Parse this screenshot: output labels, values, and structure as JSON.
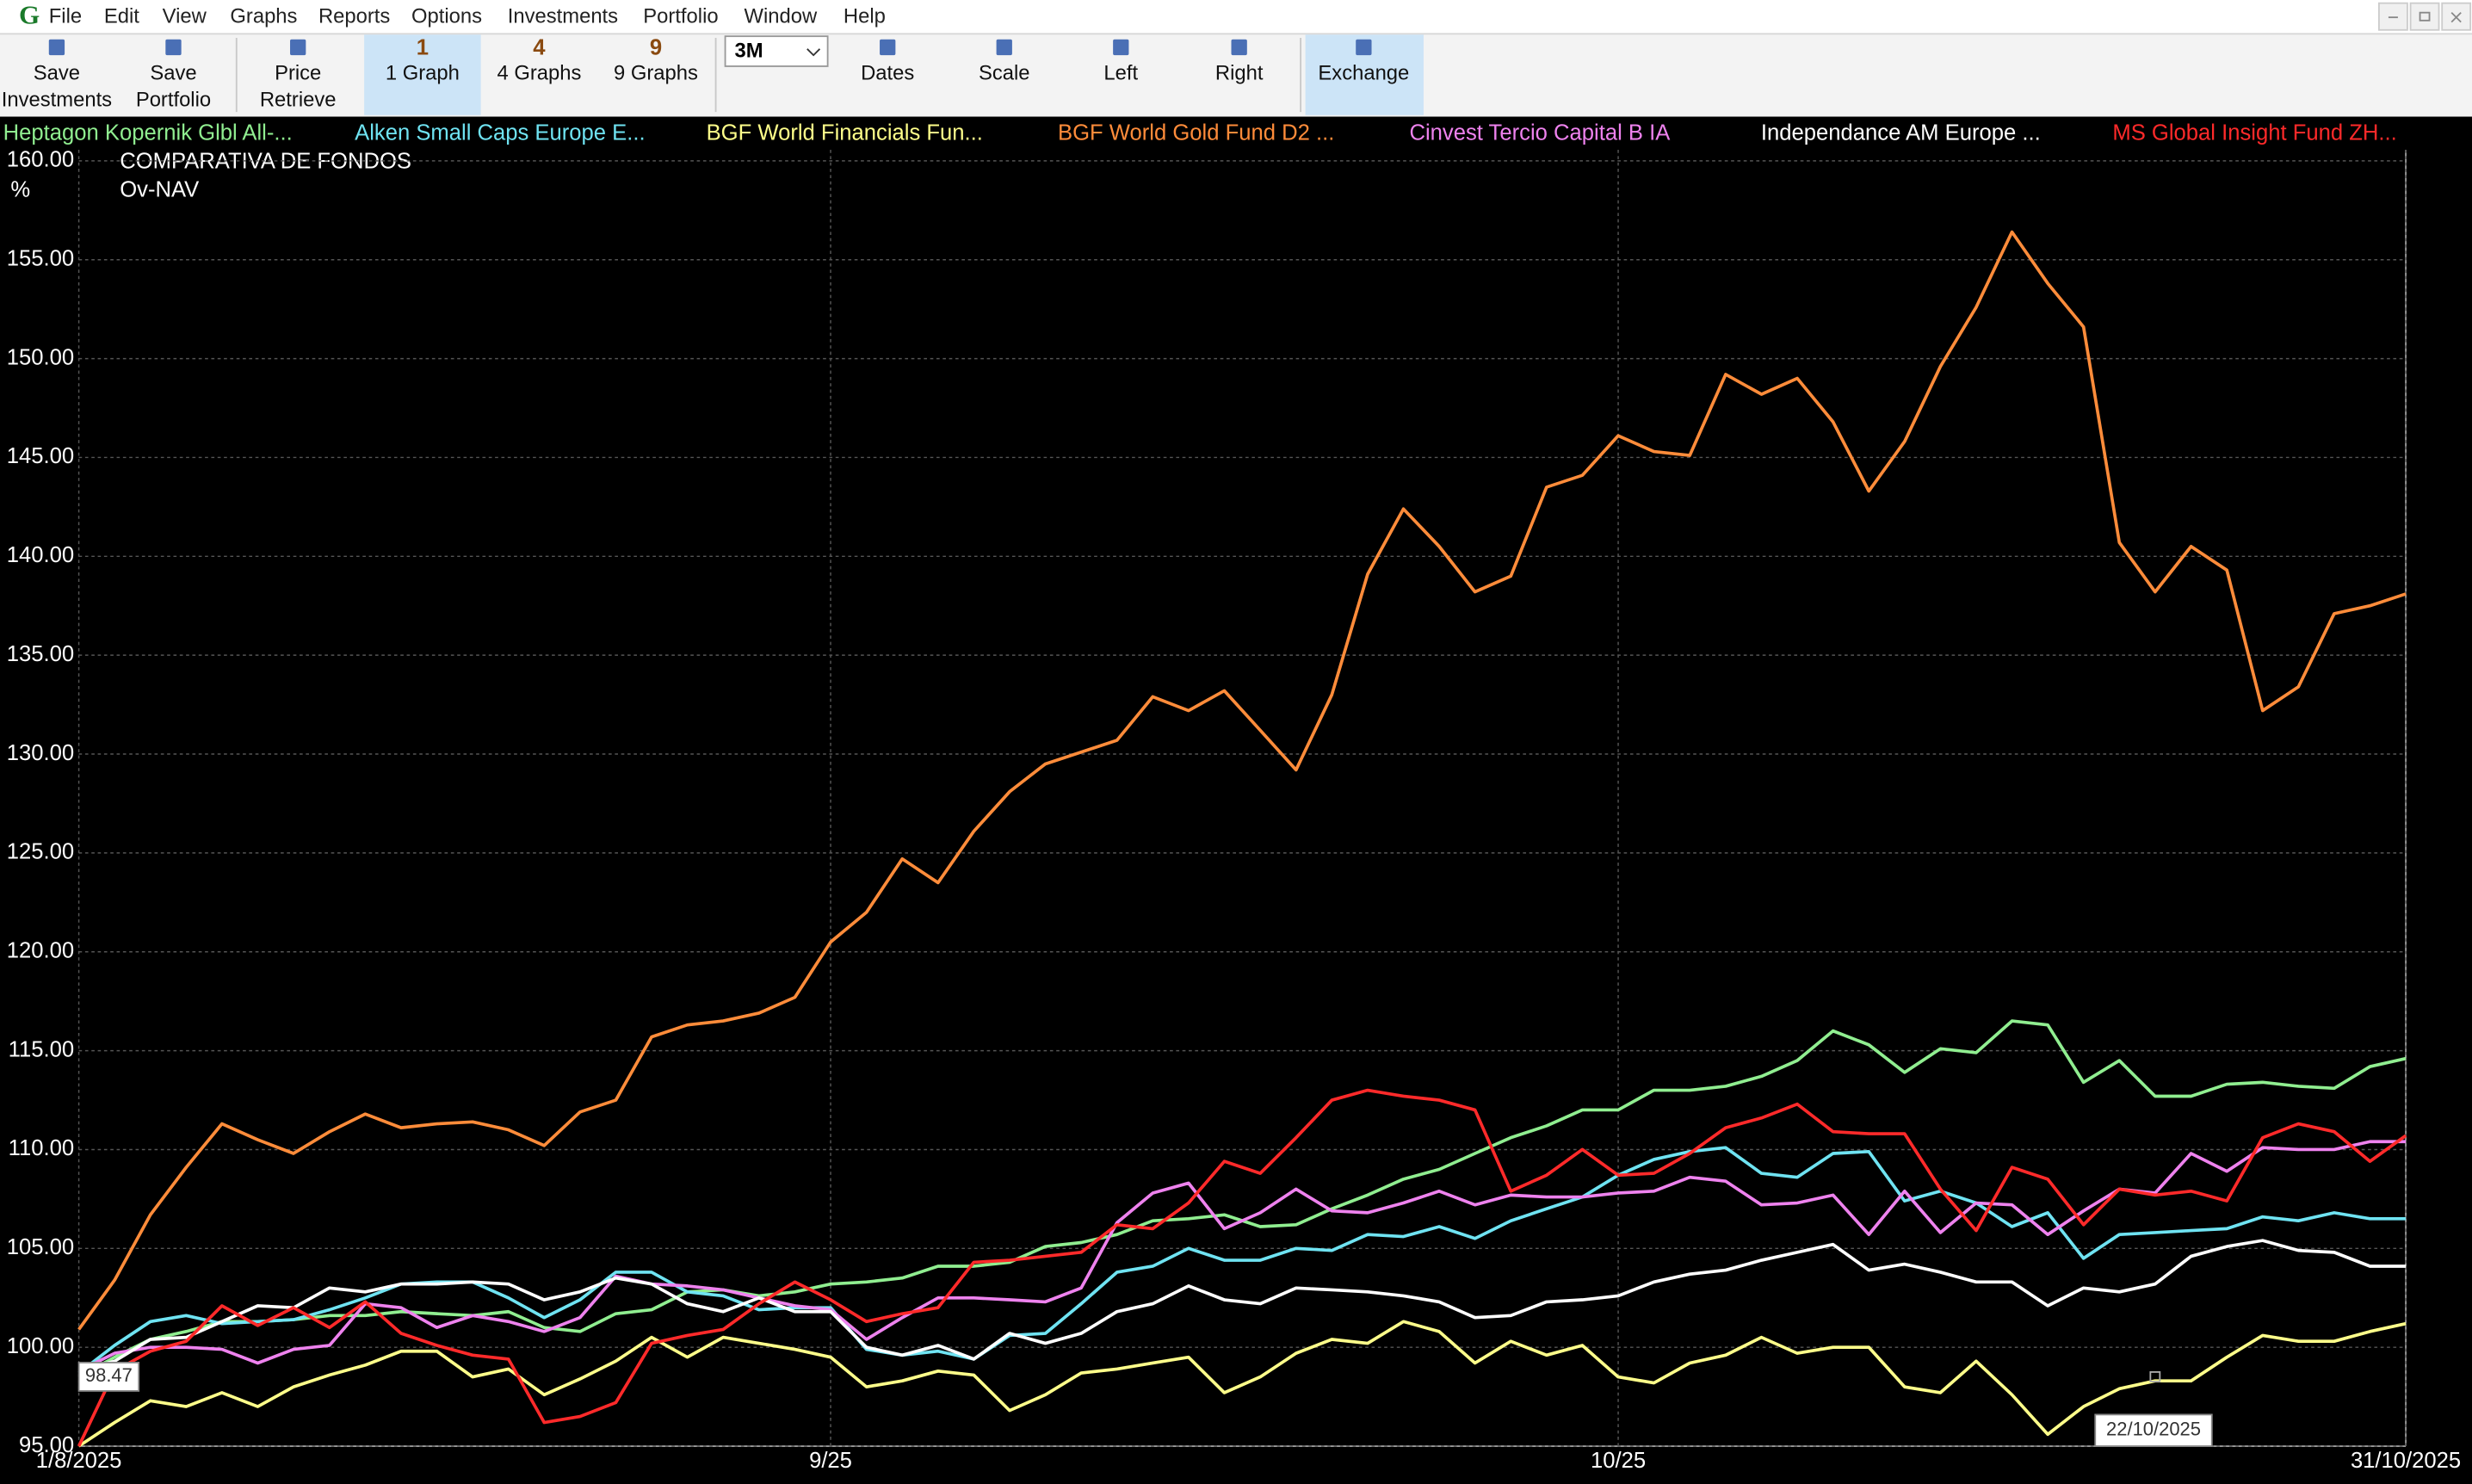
{
  "menu": [
    "File",
    "Edit",
    "View",
    "Graphs",
    "Reports",
    "Options",
    "Investments",
    "Portfolio",
    "Window",
    "Help"
  ],
  "toolbar": [
    {
      "lines": [
        "Save",
        "Investments"
      ]
    },
    {
      "lines": [
        "Save",
        "Portfolio"
      ]
    },
    {
      "lines": [
        "Price",
        "Retrieve"
      ]
    },
    {
      "number": "1",
      "lines": [
        "1 Graph"
      ]
    },
    {
      "number": "4",
      "lines": [
        "4 Graphs"
      ]
    },
    {
      "number": "9",
      "lines": [
        "9 Graphs"
      ]
    },
    {
      "lines": [
        "Dates"
      ]
    },
    {
      "lines": [
        "Scale"
      ]
    },
    {
      "lines": [
        "Left"
      ]
    },
    {
      "lines": [
        "Right"
      ]
    },
    {
      "lines": [
        "Exchange"
      ]
    }
  ],
  "period": "3M",
  "cursor": {
    "value_label": "98.47",
    "date_label": "22/10/2025"
  },
  "chart_data": {
    "type": "line",
    "title": "COMPARATIVA DE FONDOS",
    "subtitle": "Ov-NAV",
    "y_label": "%",
    "xlim": [
      0,
      65
    ],
    "xticks": [
      {
        "value": 0,
        "label": "1/8/2025"
      },
      {
        "value": 21,
        "label": "9/25"
      },
      {
        "value": 43,
        "label": "10/25"
      },
      {
        "value": 65,
        "label": "31/10/2025"
      }
    ],
    "ylim": [
      95,
      160
    ],
    "yticks": [
      {
        "value": 95,
        "label": "95.00"
      },
      {
        "value": 100,
        "label": "100.00"
      },
      {
        "value": 105,
        "label": "105.00"
      },
      {
        "value": 110,
        "label": "110.00"
      },
      {
        "value": 115,
        "label": "115.00"
      },
      {
        "value": 120,
        "label": "120.00"
      },
      {
        "value": 125,
        "label": "125.00"
      },
      {
        "value": 130,
        "label": "130.00"
      },
      {
        "value": 135,
        "label": "135.00"
      },
      {
        "value": 140,
        "label": "140.00"
      },
      {
        "value": 145,
        "label": "145.00"
      },
      {
        "value": 150,
        "label": "150.00"
      },
      {
        "value": 155,
        "label": "155.00"
      },
      {
        "value": 160,
        "label": "160.00"
      }
    ],
    "grid": true,
    "series": [
      {
        "name": "Heptagon Kopernik Glbl All-...",
        "color": "#90ee90",
        "values": [
          98.5,
          99.5,
          100.4,
          100.8,
          101.3,
          101.3,
          101.4,
          101.6,
          101.6,
          101.8,
          101.7,
          101.6,
          101.8,
          101.0,
          100.8,
          101.7,
          101.9,
          102.8,
          102.9,
          102.6,
          102.8,
          103.2,
          103.3,
          103.5,
          104.1,
          104.1,
          104.3,
          105.1,
          105.3,
          105.7,
          106.4,
          106.5,
          106.7,
          106.1,
          106.2,
          107.0,
          107.7,
          108.5,
          109.0,
          109.8,
          110.6,
          111.2,
          112.0,
          112.0,
          113.0,
          113.0,
          113.2,
          113.7,
          114.5,
          116.0,
          115.3,
          113.9,
          115.1,
          114.9,
          116.5,
          116.3,
          113.4,
          114.5,
          112.7,
          112.7,
          113.3,
          113.4,
          113.2,
          113.1,
          114.2,
          114.6
        ]
      },
      {
        "name": "Alken Small Caps Europe E...",
        "color": "#6fe3f2",
        "values": [
          98.7,
          100.1,
          101.3,
          101.6,
          101.2,
          101.3,
          101.4,
          101.9,
          102.5,
          103.2,
          103.3,
          103.3,
          102.5,
          101.5,
          102.4,
          103.8,
          103.8,
          102.8,
          102.6,
          101.9,
          102.0,
          102.0,
          99.9,
          99.6,
          99.8,
          99.4,
          100.6,
          100.7,
          102.2,
          103.8,
          104.1,
          105.0,
          104.4,
          104.4,
          105.0,
          104.9,
          105.7,
          105.6,
          106.1,
          105.5,
          106.4,
          107.0,
          107.6,
          108.7,
          109.5,
          109.9,
          110.1,
          108.8,
          108.6,
          109.8,
          109.9,
          107.4,
          107.9,
          107.3,
          106.1,
          106.8,
          104.5,
          105.7,
          105.8,
          105.9,
          106.0,
          106.6,
          106.4,
          106.8,
          106.5,
          106.5
        ]
      },
      {
        "name": "BGF World Financials Fun...",
        "color": "#ffff8a",
        "values": [
          95.0,
          96.2,
          97.3,
          97.0,
          97.7,
          97.0,
          98.0,
          98.6,
          99.1,
          99.8,
          99.8,
          98.5,
          98.9,
          97.6,
          98.4,
          99.3,
          100.5,
          99.5,
          100.5,
          100.2,
          99.9,
          99.5,
          98.0,
          98.3,
          98.8,
          98.6,
          96.8,
          97.6,
          98.7,
          98.9,
          99.2,
          99.5,
          97.7,
          98.5,
          99.7,
          100.4,
          100.2,
          101.3,
          100.8,
          99.2,
          100.3,
          99.6,
          100.1,
          98.5,
          98.2,
          99.2,
          99.6,
          100.5,
          99.7,
          100.0,
          100.0,
          98.0,
          97.7,
          99.3,
          97.6,
          95.6,
          97.0,
          97.9,
          98.3,
          98.3,
          99.5,
          100.6,
          100.3,
          100.3,
          100.8,
          101.2
        ]
      },
      {
        "name": "BGF World Gold Fund D2 ...",
        "color": "#ff8c3a",
        "values": [
          100.9,
          103.4,
          106.7,
          109.1,
          111.3,
          110.5,
          109.8,
          110.9,
          111.8,
          111.1,
          111.3,
          111.4,
          111.0,
          110.2,
          111.9,
          112.5,
          115.7,
          116.3,
          116.5,
          116.9,
          117.7,
          120.5,
          122.0,
          124.7,
          123.5,
          126.1,
          128.1,
          129.5,
          130.1,
          130.7,
          132.9,
          132.2,
          133.2,
          131.2,
          129.2,
          133.0,
          139.1,
          142.4,
          140.5,
          138.2,
          139.0,
          143.5,
          144.1,
          146.1,
          145.3,
          145.1,
          149.2,
          148.2,
          149.0,
          146.8,
          143.3,
          145.8,
          149.6,
          152.6,
          156.4,
          153.8,
          151.6,
          140.7,
          138.2,
          140.5,
          139.3,
          132.2,
          133.4,
          137.1,
          137.5,
          138.1
        ]
      },
      {
        "name": "Cinvest Tercio Capital B IA",
        "color": "#ee82ee",
        "values": [
          98.8,
          99.7,
          100.0,
          100.0,
          99.9,
          99.2,
          99.9,
          100.1,
          102.2,
          102.0,
          101.0,
          101.6,
          101.3,
          100.8,
          101.5,
          103.6,
          103.2,
          103.1,
          102.9,
          102.5,
          102.1,
          101.9,
          100.4,
          101.5,
          102.5,
          102.5,
          102.4,
          102.3,
          103.0,
          106.3,
          107.8,
          108.3,
          106.0,
          106.8,
          108.0,
          106.9,
          106.8,
          107.3,
          107.9,
          107.2,
          107.7,
          107.6,
          107.6,
          107.8,
          107.9,
          108.6,
          108.4,
          107.2,
          107.3,
          107.7,
          105.7,
          107.9,
          105.8,
          107.3,
          107.2,
          105.7,
          106.9,
          108.0,
          107.8,
          109.8,
          108.9,
          110.1,
          110.0,
          110.0,
          110.4,
          110.4
        ]
      },
      {
        "name": "Independance AM Europe ...",
        "color": "#ffffff",
        "values": [
          98.8,
          99.3,
          100.4,
          100.5,
          101.3,
          102.1,
          102.0,
          103.0,
          102.8,
          103.2,
          103.2,
          103.3,
          103.2,
          102.4,
          102.8,
          103.5,
          103.2,
          102.2,
          101.8,
          102.5,
          101.8,
          101.8,
          100.0,
          99.6,
          100.1,
          99.4,
          100.7,
          100.2,
          100.7,
          101.8,
          102.2,
          103.1,
          102.4,
          102.2,
          103.0,
          102.9,
          102.8,
          102.6,
          102.3,
          101.5,
          101.6,
          102.3,
          102.4,
          102.6,
          103.3,
          103.7,
          103.9,
          104.4,
          104.8,
          105.2,
          103.9,
          104.2,
          103.8,
          103.3,
          103.3,
          102.1,
          103.0,
          102.8,
          103.2,
          104.6,
          105.1,
          105.4,
          104.9,
          104.8,
          104.1,
          104.1
        ]
      },
      {
        "name": "MS Global Insight Fund ZH...",
        "color": "#ff2a2a",
        "values": [
          95.0,
          98.8,
          99.8,
          100.3,
          102.1,
          101.1,
          102.0,
          101.0,
          102.3,
          100.7,
          100.1,
          99.6,
          99.4,
          96.2,
          96.5,
          97.2,
          100.2,
          100.6,
          100.9,
          102.2,
          103.3,
          102.4,
          101.3,
          101.7,
          102.0,
          104.3,
          104.4,
          104.6,
          104.8,
          106.2,
          106.0,
          107.3,
          109.4,
          108.8,
          110.6,
          112.5,
          113.0,
          112.7,
          112.5,
          112.0,
          107.9,
          108.7,
          110.0,
          108.7,
          108.8,
          109.8,
          111.1,
          111.6,
          112.3,
          110.9,
          110.8,
          110.8,
          108.0,
          105.9,
          109.1,
          108.5,
          106.2,
          108.0,
          107.7,
          107.9,
          107.4,
          110.6,
          111.3,
          110.9,
          109.4,
          110.7
        ]
      }
    ]
  }
}
